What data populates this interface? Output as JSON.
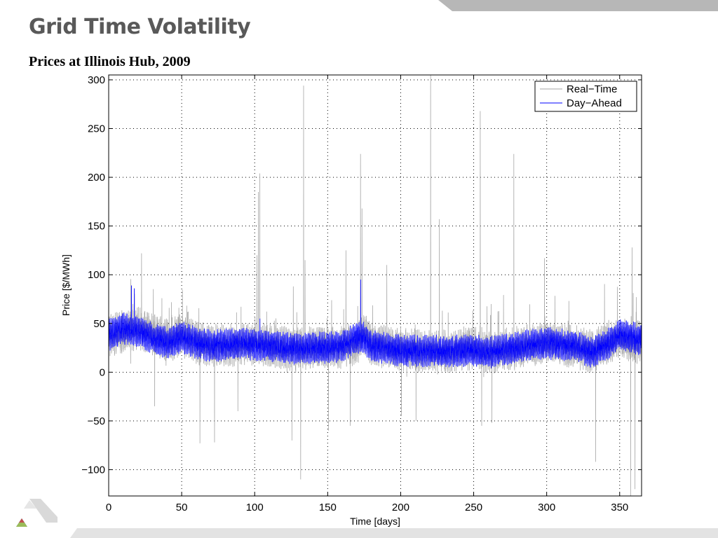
{
  "slide": {
    "title": "Grid Time Volatility",
    "subtitle": "Prices at Illinois Hub, 2009"
  },
  "colors": {
    "title": "#595959",
    "decor_band": "#b7b7b7",
    "real_time": "#a6a6a6",
    "day_ahead": "#0000ff"
  },
  "icons": {
    "logo": "argonne-triangle-logo"
  },
  "chart_data": {
    "type": "line",
    "title": "",
    "xlabel": "Time [days]",
    "ylabel": "Price [$/MWh]",
    "xlim": [
      0,
      365
    ],
    "ylim": [
      -127,
      305
    ],
    "x_ticks": [
      0,
      50,
      100,
      150,
      200,
      250,
      300,
      350
    ],
    "y_ticks": [
      -100,
      -50,
      0,
      50,
      100,
      150,
      200,
      250,
      300
    ],
    "x_tick_labels": [
      "0",
      "50",
      "100",
      "150",
      "200",
      "250",
      "300",
      "350"
    ],
    "y_tick_labels": [
      "−100",
      "−50",
      "0",
      "50",
      "100",
      "150",
      "200",
      "250",
      "300"
    ],
    "grid": true,
    "legend_position": "top-right",
    "series": [
      {
        "name": "Real−Time",
        "color": "#a6a6a6",
        "sampling": "hourly",
        "baseline_daily": {
          "x": [
            0,
            10,
            20,
            30,
            40,
            50,
            60,
            70,
            80,
            90,
            100,
            110,
            120,
            130,
            140,
            150,
            160,
            170,
            175,
            180,
            190,
            200,
            210,
            220,
            230,
            240,
            250,
            260,
            270,
            280,
            290,
            300,
            310,
            320,
            330,
            340,
            350,
            360,
            365
          ],
          "y": [
            38,
            40,
            45,
            40,
            32,
            38,
            30,
            28,
            27,
            28,
            30,
            27,
            25,
            24,
            25,
            25,
            26,
            30,
            40,
            28,
            26,
            24,
            22,
            22,
            21,
            23,
            25,
            20,
            22,
            25,
            28,
            30,
            28,
            26,
            22,
            28,
            35,
            30,
            32
          ]
        },
        "spikes": [
          {
            "x": 22,
            "y": 122
          },
          {
            "x": 101,
            "y": 120
          },
          {
            "x": 102,
            "y": 185
          },
          {
            "x": 103,
            "y": 204
          },
          {
            "x": 133,
            "y": 294
          },
          {
            "x": 134,
            "y": 115
          },
          {
            "x": 172,
            "y": 224
          },
          {
            "x": 173,
            "y": 168
          },
          {
            "x": 220,
            "y": 305
          },
          {
            "x": 226,
            "y": 157
          },
          {
            "x": 254,
            "y": 268
          },
          {
            "x": 255,
            "y": 270
          },
          {
            "x": 277,
            "y": 224
          },
          {
            "x": 358,
            "y": 128
          },
          {
            "x": 162,
            "y": 125
          },
          {
            "x": 190,
            "y": 110
          },
          {
            "x": 298,
            "y": 117
          }
        ],
        "dips": [
          {
            "x": 31,
            "y": -35
          },
          {
            "x": 62,
            "y": -73
          },
          {
            "x": 72,
            "y": -72
          },
          {
            "x": 88,
            "y": -40
          },
          {
            "x": 125,
            "y": -70
          },
          {
            "x": 131,
            "y": -110
          },
          {
            "x": 150,
            "y": -60
          },
          {
            "x": 165,
            "y": -55
          },
          {
            "x": 200,
            "y": -45
          },
          {
            "x": 210,
            "y": -50
          },
          {
            "x": 255,
            "y": -55
          },
          {
            "x": 262,
            "y": -52
          },
          {
            "x": 333,
            "y": -92
          },
          {
            "x": 357,
            "y": -127
          },
          {
            "x": 360,
            "y": -120
          }
        ]
      },
      {
        "name": "Day−Ahead",
        "color": "#0000ff",
        "sampling": "hourly",
        "baseline_daily": {
          "x": [
            0,
            10,
            20,
            30,
            40,
            50,
            60,
            70,
            80,
            90,
            100,
            110,
            120,
            130,
            140,
            150,
            160,
            170,
            175,
            180,
            190,
            200,
            210,
            220,
            230,
            240,
            250,
            260,
            270,
            280,
            290,
            300,
            310,
            320,
            330,
            340,
            350,
            360,
            365
          ],
          "y": [
            38,
            45,
            42,
            35,
            30,
            36,
            30,
            27,
            28,
            30,
            28,
            27,
            25,
            24,
            25,
            25,
            27,
            35,
            35,
            27,
            25,
            22,
            22,
            22,
            21,
            22,
            23,
            20,
            23,
            25,
            28,
            30,
            28,
            27,
            20,
            27,
            38,
            35,
            32
          ]
        },
        "peaks": [
          {
            "x": 15,
            "y": 89
          },
          {
            "x": 17,
            "y": 86
          },
          {
            "x": 103,
            "y": 55
          },
          {
            "x": 172,
            "y": 95
          }
        ]
      }
    ]
  }
}
